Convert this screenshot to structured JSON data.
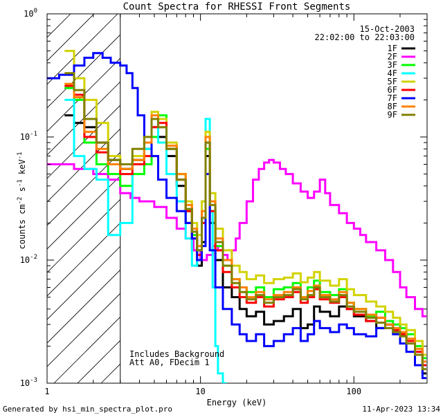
{
  "chart_data": {
    "type": "line",
    "title": "Count Spectra for RHESSI Front Segments",
    "date": "15-Oct-2003",
    "time_range": "22:02:00 to 22:03:00",
    "xlabel": "Energy (keV)",
    "ylabel_parts": {
      "base": "counts cm",
      "exp1": "-2",
      "mid1": " s",
      "exp2": "-1",
      "mid2": " keV",
      "exp3": "-1"
    },
    "xscale": "log",
    "yscale": "log",
    "xlim": [
      1,
      300
    ],
    "ylim": [
      0.001,
      1
    ],
    "x_ticks": [
      {
        "value": 1,
        "label": "1"
      },
      {
        "value": 10,
        "label": "10"
      },
      {
        "value": 100,
        "label": "100"
      }
    ],
    "y_ticks": [
      {
        "value": 1,
        "base": "10",
        "exp": "0"
      },
      {
        "value": 0.1,
        "base": "10",
        "exp": "-1"
      },
      {
        "value": 0.01,
        "base": "10",
        "exp": "-2"
      },
      {
        "value": 0.001,
        "base": "10",
        "exp": "-3"
      }
    ],
    "hatched_region": [
      1,
      3
    ],
    "annotations": [
      "Includes Background",
      "Att A0, FDecim 1"
    ],
    "footer_left": "Generated by hsi_min_spectra_plot.pro",
    "footer_right": "11-Apr-2023 13:34",
    "legend_position": "top-right",
    "series": [
      {
        "name": "1F",
        "color": "#000000",
        "x": [
          1.3,
          1.5,
          1.75,
          2.1,
          2.5,
          3.0,
          3.6,
          4.3,
          4.8,
          5.3,
          6.0,
          7.0,
          8.0,
          8.8,
          9.5,
          10.2,
          10.8,
          11.5,
          12.5,
          14,
          16,
          18,
          20,
          23,
          26,
          30,
          35,
          40,
          45,
          50,
          55,
          60,
          70,
          80,
          90,
          100,
          120,
          140,
          160,
          180,
          200,
          220,
          250,
          280
        ],
        "y": [
          0.15,
          0.13,
          0.12,
          0.09,
          0.065,
          0.055,
          0.065,
          0.08,
          0.12,
          0.1,
          0.07,
          0.04,
          0.02,
          0.012,
          0.009,
          0.014,
          0.07,
          0.02,
          0.01,
          0.006,
          0.005,
          0.004,
          0.0035,
          0.0038,
          0.003,
          0.0032,
          0.0035,
          0.004,
          0.0028,
          0.003,
          0.0042,
          0.0038,
          0.0035,
          0.0042,
          0.004,
          0.0035,
          0.0032,
          0.0028,
          0.003,
          0.0026,
          0.0025,
          0.0022,
          0.0018,
          0.0012
        ]
      },
      {
        "name": "2F",
        "color": "#ff00ff",
        "x": [
          1.0,
          1.5,
          2.0,
          2.5,
          3.0,
          3.5,
          4.0,
          5.0,
          6.0,
          7.0,
          8.0,
          9.0,
          10,
          11,
          12,
          13,
          14,
          15,
          16,
          17,
          18,
          20,
          22,
          24,
          26,
          28,
          30,
          33,
          36,
          40,
          45,
          50,
          55,
          60,
          65,
          70,
          80,
          90,
          100,
          110,
          120,
          140,
          160,
          180,
          200,
          220,
          250,
          280
        ],
        "y": [
          0.06,
          0.055,
          0.05,
          0.045,
          0.035,
          0.032,
          0.03,
          0.027,
          0.022,
          0.018,
          0.015,
          0.012,
          0.01,
          0.011,
          0.013,
          0.012,
          0.011,
          0.01,
          0.012,
          0.015,
          0.02,
          0.03,
          0.045,
          0.055,
          0.062,
          0.065,
          0.062,
          0.055,
          0.05,
          0.042,
          0.036,
          0.032,
          0.036,
          0.045,
          0.035,
          0.028,
          0.024,
          0.02,
          0.018,
          0.016,
          0.014,
          0.012,
          0.01,
          0.008,
          0.006,
          0.005,
          0.004,
          0.0035
        ]
      },
      {
        "name": "3F",
        "color": "#00ff00",
        "x": [
          1.3,
          1.5,
          1.75,
          2.1,
          2.5,
          3.0,
          3.6,
          4.3,
          4.8,
          5.3,
          6.0,
          7.0,
          8.0,
          8.8,
          9.5,
          10.2,
          10.8,
          11.5,
          12.5,
          14,
          16,
          18,
          20,
          23,
          26,
          30,
          35,
          40,
          45,
          50,
          55,
          60,
          70,
          80,
          90,
          100,
          120,
          140,
          160,
          180,
          200,
          220,
          250,
          280
        ],
        "y": [
          0.25,
          0.2,
          0.09,
          0.06,
          0.05,
          0.04,
          0.05,
          0.06,
          0.1,
          0.15,
          0.08,
          0.05,
          0.025,
          0.016,
          0.012,
          0.02,
          0.08,
          0.025,
          0.013,
          0.009,
          0.007,
          0.006,
          0.0055,
          0.006,
          0.005,
          0.0058,
          0.006,
          0.0065,
          0.005,
          0.006,
          0.0068,
          0.0055,
          0.0052,
          0.0058,
          0.0045,
          0.004,
          0.0035,
          0.0038,
          0.0032,
          0.003,
          0.0028,
          0.0025,
          0.002,
          0.0016
        ]
      },
      {
        "name": "4F",
        "color": "#00ffff",
        "x": [
          1.3,
          1.5,
          1.75,
          2.1,
          2.5,
          3.0,
          3.6,
          4.3,
          4.8,
          5.3,
          6.0,
          7.0,
          8.0,
          8.8,
          9.5,
          10.2,
          10.8,
          11.5,
          12.0,
          12.5,
          13.0,
          14
        ],
        "y": [
          0.2,
          0.07,
          0.055,
          0.045,
          0.016,
          0.02,
          0.06,
          0.08,
          0.12,
          0.09,
          0.05,
          0.03,
          0.015,
          0.009,
          0.012,
          0.03,
          0.14,
          0.025,
          0.006,
          0.002,
          0.0012,
          0.001
        ]
      },
      {
        "name": "5F",
        "color": "#d2d200",
        "x": [
          1.3,
          1.5,
          1.75,
          2.1,
          2.5,
          3.0,
          3.6,
          4.3,
          4.8,
          5.3,
          6.0,
          7.0,
          8.0,
          8.8,
          9.5,
          10.2,
          10.8,
          11.5,
          12.5,
          14,
          16,
          18,
          20,
          23,
          26,
          30,
          35,
          40,
          45,
          50,
          55,
          60,
          70,
          80,
          90,
          100,
          120,
          140,
          160,
          180,
          200,
          220,
          250,
          280
        ],
        "y": [
          0.5,
          0.3,
          0.2,
          0.13,
          0.07,
          0.06,
          0.07,
          0.1,
          0.16,
          0.14,
          0.09,
          0.05,
          0.03,
          0.02,
          0.016,
          0.03,
          0.11,
          0.035,
          0.018,
          0.012,
          0.009,
          0.008,
          0.007,
          0.0075,
          0.0065,
          0.007,
          0.0072,
          0.0078,
          0.0066,
          0.0072,
          0.008,
          0.0068,
          0.0062,
          0.007,
          0.0058,
          0.0052,
          0.0046,
          0.0042,
          0.0038,
          0.0034,
          0.003,
          0.0027,
          0.0022,
          0.0017
        ]
      },
      {
        "name": "6F",
        "color": "#ff0000",
        "x": [
          1.3,
          1.5,
          1.75,
          2.1,
          2.5,
          3.0,
          3.6,
          4.3,
          4.8,
          5.3,
          6.0,
          7.0,
          8.0,
          8.8,
          9.5,
          10.2,
          10.8,
          11.5,
          12.5,
          14,
          16,
          18,
          20,
          23,
          26,
          30,
          35,
          40,
          45,
          50,
          55,
          60,
          70,
          80,
          90,
          100,
          120,
          140,
          160,
          180,
          200,
          220,
          250,
          280
        ],
        "y": [
          0.26,
          0.22,
          0.1,
          0.075,
          0.06,
          0.05,
          0.06,
          0.07,
          0.12,
          0.13,
          0.08,
          0.045,
          0.025,
          0.015,
          0.011,
          0.02,
          0.09,
          0.025,
          0.012,
          0.008,
          0.006,
          0.005,
          0.0045,
          0.005,
          0.0042,
          0.0048,
          0.005,
          0.0055,
          0.0045,
          0.005,
          0.0058,
          0.0048,
          0.0045,
          0.005,
          0.004,
          0.0036,
          0.0032,
          0.0034,
          0.003,
          0.0027,
          0.0025,
          0.0022,
          0.0018,
          0.0014
        ]
      },
      {
        "name": "7F",
        "color": "#0000ff",
        "x": [
          1.0,
          1.2,
          1.5,
          1.75,
          2.0,
          2.3,
          2.6,
          3.0,
          3.3,
          3.6,
          3.9,
          4.3,
          4.8,
          5.3,
          6.0,
          7.0,
          8.0,
          8.8,
          9.5,
          10.2,
          10.8,
          11.5,
          12.5,
          14,
          16,
          18,
          20,
          23,
          26,
          30,
          35,
          40,
          45,
          50,
          55,
          60,
          70,
          80,
          90,
          100,
          120,
          140,
          160,
          180,
          200,
          220,
          250,
          280
        ],
        "y": [
          0.3,
          0.32,
          0.38,
          0.44,
          0.48,
          0.44,
          0.4,
          0.38,
          0.33,
          0.25,
          0.15,
          0.1,
          0.07,
          0.045,
          0.032,
          0.025,
          0.02,
          0.015,
          0.01,
          0.013,
          0.05,
          0.012,
          0.006,
          0.004,
          0.003,
          0.0025,
          0.0022,
          0.0025,
          0.002,
          0.0022,
          0.0025,
          0.0028,
          0.0022,
          0.0025,
          0.0032,
          0.0028,
          0.0026,
          0.003,
          0.0028,
          0.0025,
          0.0024,
          0.0028,
          0.003,
          0.0025,
          0.0021,
          0.0018,
          0.0014,
          0.0011
        ]
      },
      {
        "name": "8F",
        "color": "#ff8000",
        "x": [
          1.3,
          1.5,
          1.75,
          2.1,
          2.5,
          3.0,
          3.6,
          4.3,
          4.8,
          5.3,
          6.0,
          7.0,
          8.0,
          8.8,
          9.5,
          10.2,
          10.8,
          11.5,
          12.5,
          14,
          16,
          18,
          20,
          23,
          26,
          30,
          35,
          40,
          45,
          50,
          55,
          60,
          70,
          80,
          90,
          100,
          120,
          140,
          160,
          180,
          200,
          220,
          250,
          280
        ],
        "y": [
          0.27,
          0.21,
          0.11,
          0.08,
          0.06,
          0.055,
          0.065,
          0.09,
          0.15,
          0.12,
          0.085,
          0.05,
          0.028,
          0.018,
          0.013,
          0.025,
          0.1,
          0.03,
          0.015,
          0.01,
          0.007,
          0.006,
          0.005,
          0.0055,
          0.0048,
          0.0052,
          0.0055,
          0.006,
          0.005,
          0.0056,
          0.0062,
          0.0052,
          0.0048,
          0.0055,
          0.0045,
          0.004,
          0.0036,
          0.0034,
          0.003,
          0.0028,
          0.0026,
          0.0023,
          0.0019,
          0.0015
        ]
      },
      {
        "name": "9F",
        "color": "#808000",
        "x": [
          1.3,
          1.5,
          1.75,
          2.1,
          2.5,
          3.0,
          3.6,
          4.3,
          4.8,
          5.3,
          6.0,
          7.0,
          8.0,
          8.8,
          9.5,
          10.2,
          10.8,
          11.5,
          12.5,
          14,
          16,
          18,
          20,
          23,
          26,
          30,
          35,
          40,
          45,
          50,
          55,
          60,
          70,
          80,
          90,
          100,
          120,
          140,
          160,
          180,
          200,
          220,
          250,
          280
        ],
        "y": [
          0.33,
          0.24,
          0.14,
          0.09,
          0.065,
          0.06,
          0.08,
          0.1,
          0.14,
          0.12,
          0.08,
          0.045,
          0.026,
          0.017,
          0.012,
          0.022,
          0.09,
          0.028,
          0.014,
          0.009,
          0.0065,
          0.0055,
          0.0048,
          0.0052,
          0.0045,
          0.005,
          0.0052,
          0.0058,
          0.0048,
          0.0052,
          0.006,
          0.005,
          0.0046,
          0.0052,
          0.0042,
          0.0038,
          0.0034,
          0.0031,
          0.0028,
          0.0026,
          0.0024,
          0.0021,
          0.0017,
          0.0013
        ]
      }
    ]
  }
}
